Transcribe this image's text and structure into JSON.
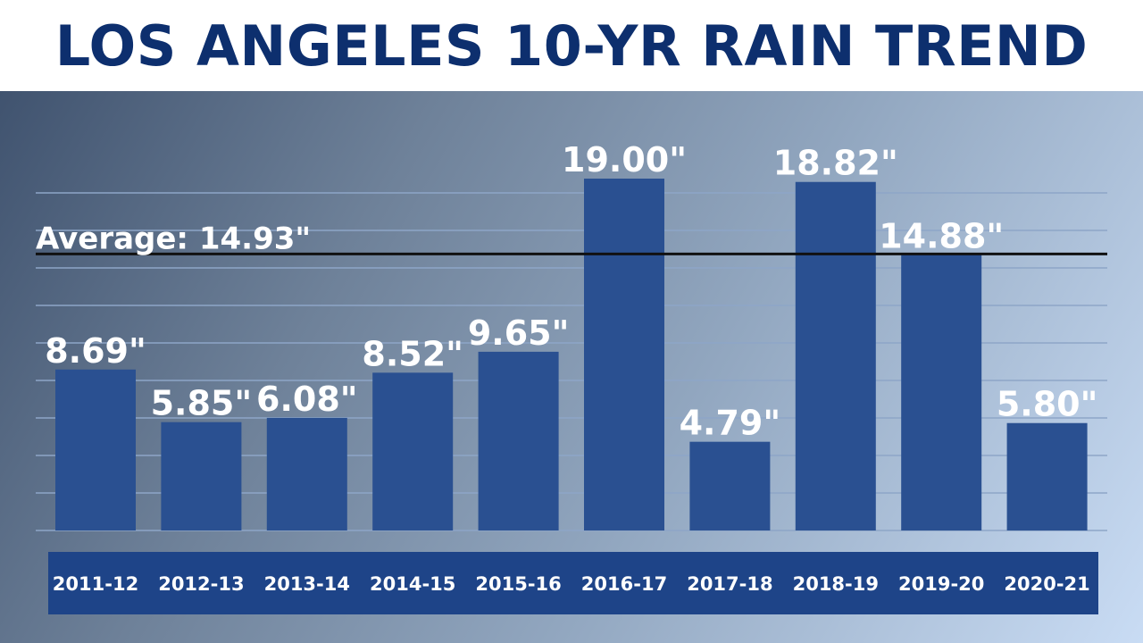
{
  "title": "LOS ANGELES 10-YR RAIN TREND",
  "colors": {
    "title": "#0d2f6e",
    "bar": "#2a5091",
    "category_band": "#1e4488",
    "average_line": "#111111",
    "gridline": "#8ea6c8",
    "text": "#ffffff"
  },
  "average": {
    "label": "Average: 14.93\"",
    "value": 14.93
  },
  "chart_data": {
    "type": "bar",
    "title": "LOS ANGELES 10-YR RAIN TREND",
    "xlabel": "",
    "ylabel": "",
    "categories": [
      "2011-12",
      "2012-13",
      "2013-14",
      "2014-15",
      "2015-16",
      "2016-17",
      "2017-18",
      "2018-19",
      "2019-20",
      "2020-21"
    ],
    "values": [
      8.69,
      5.85,
      6.08,
      8.52,
      9.65,
      19.0,
      4.79,
      18.82,
      14.88,
      5.8
    ],
    "labels": [
      "8.69\"",
      "5.85\"",
      "6.08\"",
      "8.52\"",
      "9.65\"",
      "19.00\"",
      "4.79\"",
      "18.82\"",
      "14.88\"",
      "5.80\""
    ],
    "ylim": [
      0,
      19.0
    ],
    "average": 14.93,
    "grid": true
  }
}
